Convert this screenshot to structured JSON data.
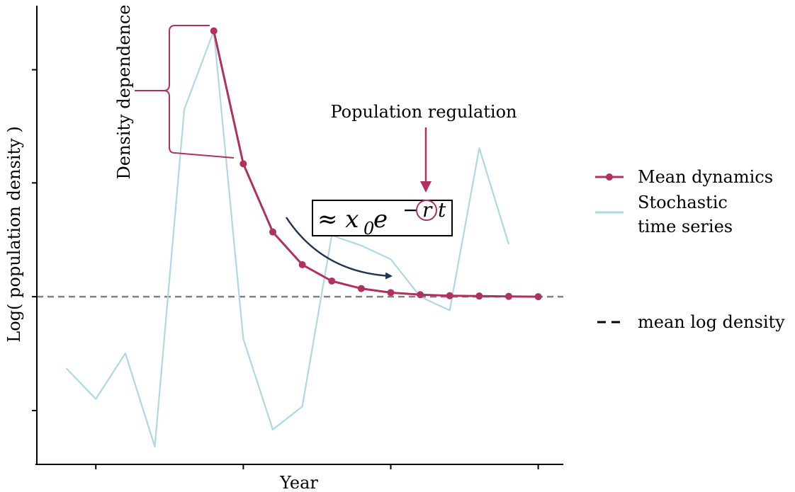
{
  "chart_data": {
    "type": "line",
    "title": "",
    "xlabel": "Year",
    "ylabel": "Log( population density )",
    "x": [
      1,
      2,
      3,
      4,
      5,
      6,
      7,
      8,
      9,
      10,
      11,
      12,
      13,
      14,
      15,
      16,
      17
    ],
    "series": [
      {
        "name": "Mean dynamics",
        "color": "#b03060",
        "markers": true,
        "x": [
          6,
          7,
          8,
          9,
          10,
          11,
          12,
          13,
          14,
          15,
          16,
          17
        ],
        "values": [
          3.9,
          1.95,
          0.95,
          0.47,
          0.23,
          0.12,
          0.06,
          0.03,
          0.015,
          0.01,
          0.005,
          0.0
        ]
      },
      {
        "name": "Stochastic time series",
        "color": "#add8e6",
        "markers": false,
        "x": [
          1,
          2,
          3,
          4,
          5,
          6,
          7,
          8,
          9,
          10,
          11,
          12,
          13,
          14,
          15,
          16
        ],
        "values": [
          -1.05,
          -1.5,
          -0.83,
          -2.2,
          2.75,
          3.9,
          -0.62,
          -1.95,
          -1.61,
          0.9,
          0.75,
          0.55,
          0.0,
          -0.2,
          2.18,
          0.77
        ]
      }
    ],
    "reference_lines": [
      {
        "name": "mean log density",
        "y": 0.0,
        "style": "dashed",
        "color": "#808080"
      }
    ],
    "xticks": [
      2.0,
      7.0,
      12.0,
      17.0
    ],
    "yticks": [
      -1.67,
      0.0,
      1.67,
      3.33
    ],
    "xlim": [
      0.0,
      17.85
    ],
    "ylim": [
      -2.46,
      4.27
    ],
    "grid": false,
    "legend_placement": "right",
    "annotations": {
      "density_dependence": "Density dependence",
      "population_regulation": "Population regulation",
      "formula_prefix": "≈ x",
      "formula_subscript": "0",
      "formula_base": " e",
      "formula_exp_minus": "−",
      "formula_exp_r": "r",
      "formula_exp_t": "t"
    }
  },
  "legend": {
    "mean_dynamics": "Mean dynamics",
    "stochastic_line1": "Stochastic",
    "stochastic_line2": "time series",
    "mean_log_density": "mean log density"
  },
  "colors": {
    "mean": "#b03060",
    "stochastic": "#add8e6",
    "reference": "#808080",
    "arrow": "#1f3552"
  }
}
